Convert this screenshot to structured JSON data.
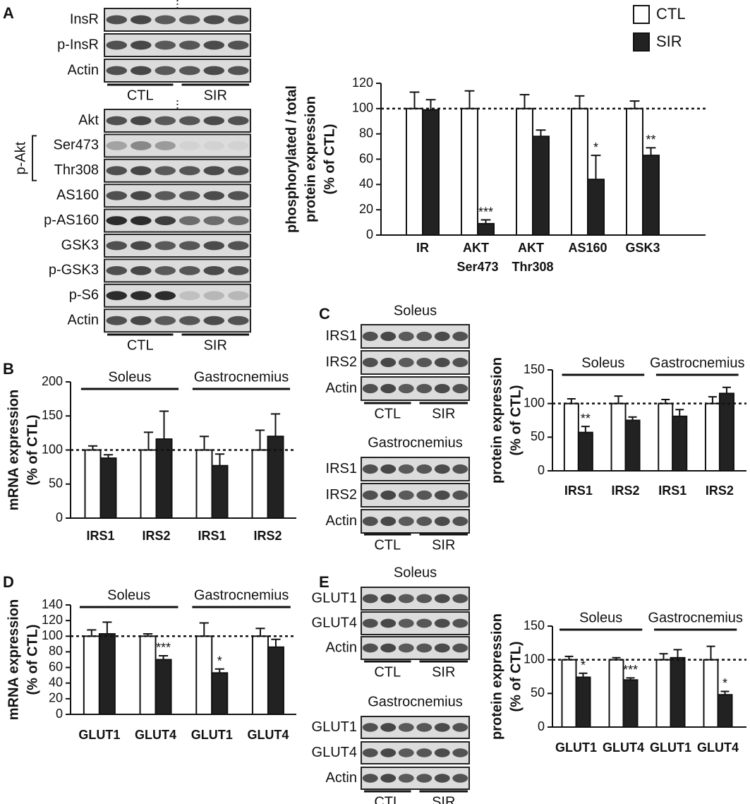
{
  "panels": {
    "A": {
      "letter": "A",
      "blots": [
        {
          "rows": [
            "InsR",
            "p-InsR",
            "Actin"
          ],
          "groups": [
            "CTL",
            "SIR"
          ]
        },
        {
          "rows": [
            "Akt",
            "Ser473",
            "Thr308",
            "AS160",
            "p-AS160",
            "GSK3",
            "p-GSK3",
            "p-S6",
            "Actin"
          ],
          "bracket": "p-Akt",
          "groups": [
            "CTL",
            "SIR"
          ]
        }
      ]
    },
    "B": {
      "letter": "B"
    },
    "C": {
      "letter": "C",
      "blots": [
        {
          "title": "Soleus",
          "rows": [
            "IRS1",
            "IRS2",
            "Actin"
          ],
          "groups": [
            "CTL",
            "SIR"
          ]
        },
        {
          "title": "Gastrocnemius",
          "rows": [
            "IRS1",
            "IRS2",
            "Actin"
          ],
          "groups": [
            "CTL",
            "SIR"
          ]
        }
      ]
    },
    "D": {
      "letter": "D"
    },
    "E": {
      "letter": "E",
      "blots": [
        {
          "title": "Soleus",
          "rows": [
            "GLUT1",
            "GLUT4",
            "Actin"
          ],
          "groups": [
            "CTL",
            "SIR"
          ]
        },
        {
          "title": "Gastrocnemius",
          "rows": [
            "GLUT1",
            "GLUT4",
            "Actin"
          ],
          "groups": [
            "CTL",
            "SIR"
          ]
        }
      ]
    }
  },
  "chart_data": [
    {
      "type": "bar",
      "ylabel": [
        "phosphorylated / total",
        "protein expression",
        "(% of CTL)"
      ],
      "categories": [
        "IR",
        "AKT Ser473",
        "AKT Thr308",
        "AS160",
        "GSK3"
      ],
      "series": [
        {
          "name": "CTL",
          "color": "#ffffff",
          "values": [
            100,
            100,
            100,
            100,
            100
          ],
          "errors": [
            13,
            14,
            11,
            10,
            6
          ]
        },
        {
          "name": "SIR",
          "color": "#222222",
          "values": [
            99,
            9,
            78,
            44,
            63
          ],
          "errors": [
            8,
            3,
            5,
            19,
            6
          ],
          "significance": [
            null,
            "***",
            null,
            "*",
            "**"
          ]
        }
      ],
      "ylim": [
        0,
        120
      ],
      "yticks": [
        0,
        20,
        40,
        60,
        80,
        100,
        120
      ],
      "reference_line": 100,
      "legend": true
    },
    {
      "type": "bar",
      "ylabel": [
        "mRNA expression",
        "(% of CTL)"
      ],
      "group_labels": [
        "Soleus",
        "Gastrocnemius"
      ],
      "categories": [
        "IRS1",
        "IRS2",
        "IRS1",
        "IRS2"
      ],
      "series": [
        {
          "name": "CTL",
          "color": "#ffffff",
          "values": [
            100,
            100,
            100,
            100
          ],
          "errors": [
            6,
            26,
            20,
            29
          ]
        },
        {
          "name": "SIR",
          "color": "#222222",
          "values": [
            88,
            116,
            77,
            120
          ],
          "errors": [
            5,
            41,
            17,
            33
          ]
        }
      ],
      "ylim": [
        0,
        200
      ],
      "yticks": [
        0,
        50,
        100,
        150,
        200
      ],
      "reference_line": 100,
      "legend": false
    },
    {
      "type": "bar",
      "ylabel": [
        "protein expression",
        "(% of CTL)"
      ],
      "group_labels": [
        "Soleus",
        "Gastrocnemius"
      ],
      "categories": [
        "IRS1",
        "IRS2",
        "IRS1",
        "IRS2"
      ],
      "series": [
        {
          "name": "CTL",
          "color": "#ffffff",
          "values": [
            100,
            100,
            100,
            100
          ],
          "errors": [
            7,
            11,
            6,
            10
          ]
        },
        {
          "name": "SIR",
          "color": "#222222",
          "values": [
            57,
            75,
            81,
            115
          ],
          "errors": [
            9,
            5,
            10,
            9
          ],
          "significance": [
            "**",
            null,
            null,
            null
          ]
        }
      ],
      "ylim": [
        0,
        150
      ],
      "yticks": [
        0,
        50,
        100,
        150
      ],
      "reference_line": 100,
      "legend": false
    },
    {
      "type": "bar",
      "ylabel": [
        "mRNA expression",
        "(% of CTL)"
      ],
      "group_labels": [
        "Soleus",
        "Gastrocnemius"
      ],
      "categories": [
        "GLUT1",
        "GLUT4",
        "GLUT1",
        "GLUT4"
      ],
      "series": [
        {
          "name": "CTL",
          "color": "#ffffff",
          "values": [
            100,
            100,
            100,
            100
          ],
          "errors": [
            8,
            3,
            17,
            10
          ]
        },
        {
          "name": "SIR",
          "color": "#222222",
          "values": [
            103,
            70,
            53,
            86
          ],
          "errors": [
            15,
            5,
            5,
            10
          ],
          "significance": [
            null,
            "***",
            "*",
            null
          ]
        }
      ],
      "ylim": [
        0,
        140
      ],
      "yticks": [
        0,
        20,
        40,
        60,
        80,
        100,
        120,
        140
      ],
      "reference_line": 100,
      "legend": false
    },
    {
      "type": "bar",
      "ylabel": [
        "protein expression",
        "(% of CTL)"
      ],
      "group_labels": [
        "Soleus",
        "Gastrocnemius"
      ],
      "categories": [
        "GLUT1",
        "GLUT4",
        "GLUT1",
        "GLUT4"
      ],
      "series": [
        {
          "name": "CTL",
          "color": "#ffffff",
          "values": [
            100,
            100,
            100,
            100
          ],
          "errors": [
            5,
            3,
            9,
            20
          ]
        },
        {
          "name": "SIR",
          "color": "#222222",
          "values": [
            74,
            70,
            103,
            48
          ],
          "errors": [
            6,
            3,
            12,
            5
          ],
          "significance": [
            "*",
            "***",
            null,
            "*"
          ]
        }
      ],
      "ylim": [
        0,
        150
      ],
      "yticks": [
        0,
        50,
        100,
        150
      ],
      "reference_line": 100,
      "legend": false
    }
  ]
}
